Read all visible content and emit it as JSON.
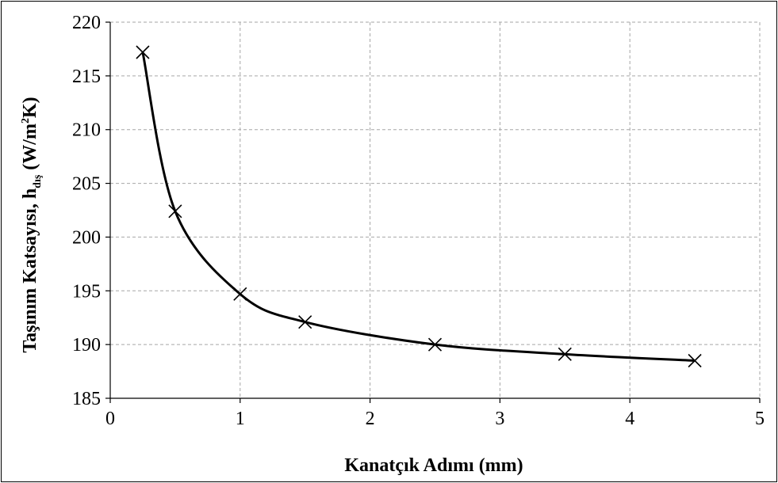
{
  "chart_data": {
    "type": "scatter",
    "xlabel": "Kanatçık Adımı (mm)",
    "ylabel": {
      "prefix": "Taşınım Katsayısı, h",
      "subscript": "dış",
      "middle": " (W/m",
      "superscript": "2",
      "suffix": "K)"
    },
    "xlim": [
      0,
      5
    ],
    "ylim": [
      185,
      220
    ],
    "xticks": [
      0,
      1,
      2,
      3,
      4,
      5
    ],
    "xtick_labels": [
      "0",
      "1",
      "2",
      "3",
      "4",
      "5"
    ],
    "yticks": [
      185,
      190,
      195,
      200,
      205,
      210,
      215,
      220
    ],
    "ytick_labels": [
      "185",
      "190",
      "195",
      "200",
      "205",
      "210",
      "215",
      "220"
    ],
    "grid": true,
    "marker": "x",
    "smooth_line": true,
    "line_color": "#000000",
    "grid_color": "#a6a6a6",
    "series": [
      {
        "x": [
          0.25,
          0.5,
          1.0,
          1.5,
          2.5,
          3.5,
          4.5
        ],
        "y": [
          217.2,
          202.4,
          194.7,
          192.1,
          190.0,
          189.1,
          188.5
        ]
      }
    ]
  }
}
